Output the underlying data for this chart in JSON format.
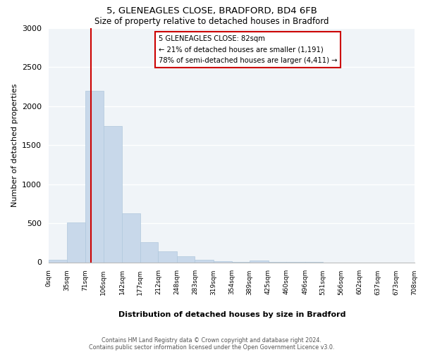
{
  "title": "5, GLENEAGLES CLOSE, BRADFORD, BD4 6FB",
  "subtitle": "Size of property relative to detached houses in Bradford",
  "xlabel": "Distribution of detached houses by size in Bradford",
  "ylabel": "Number of detached properties",
  "bar_color": "#c8d8ea",
  "bar_edge_color": "#b0c8dc",
  "vline_x": 82,
  "vline_color": "#cc0000",
  "annotation_title": "5 GLENEAGLES CLOSE: 82sqm",
  "annotation_line1": "← 21% of detached houses are smaller (1,191)",
  "annotation_line2": "78% of semi-detached houses are larger (4,411) →",
  "annotation_box_color": "white",
  "annotation_box_edge": "#cc0000",
  "bin_edges": [
    0,
    35,
    71,
    106,
    142,
    177,
    212,
    248,
    283,
    319,
    354,
    389,
    425,
    460,
    496,
    531,
    566,
    602,
    637,
    673,
    708
  ],
  "bin_counts": [
    30,
    510,
    2200,
    1750,
    630,
    260,
    140,
    75,
    35,
    10,
    5,
    20,
    5,
    2,
    1,
    0,
    0,
    0,
    0,
    0
  ],
  "ylim": [
    0,
    3000
  ],
  "yticks": [
    0,
    500,
    1000,
    1500,
    2000,
    2500,
    3000
  ],
  "xlim": [
    0,
    708
  ],
  "footer_line1": "Contains HM Land Registry data © Crown copyright and database right 2024.",
  "footer_line2": "Contains public sector information licensed under the Open Government Licence v3.0.",
  "bg_color": "#f0f4f8"
}
